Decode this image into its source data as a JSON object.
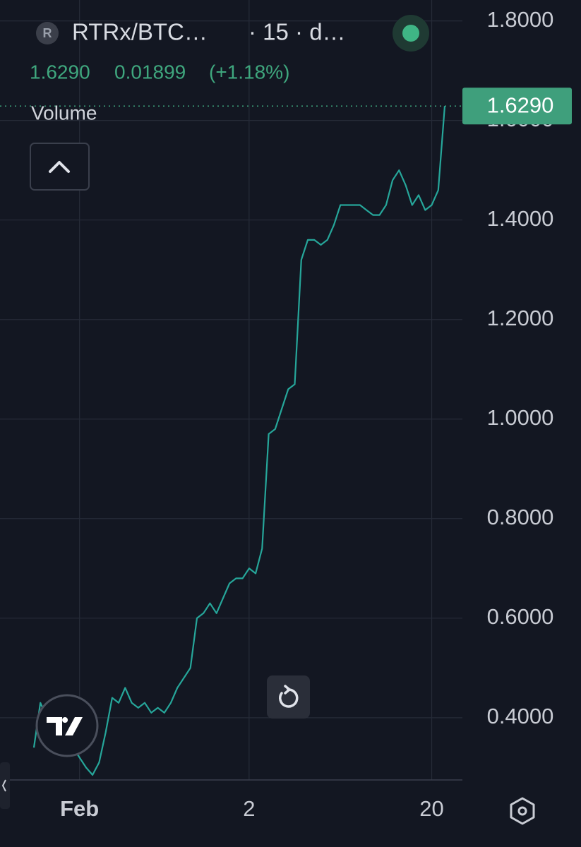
{
  "header": {
    "symbol_icon": "R",
    "symbol": "RTRx/BTC…",
    "interval": "· 15 · d…",
    "price": "1.6290",
    "change": "0.01899",
    "change_pct": "(+1.18%)"
  },
  "chart_data": {
    "type": "line",
    "volume_label": "Volume",
    "color": "#26a69a",
    "categories": [
      null,
      null,
      null,
      null,
      null,
      null,
      null,
      "Feb",
      null,
      null,
      null,
      null,
      null,
      null,
      null,
      null,
      null,
      null,
      null,
      null,
      null,
      null,
      null,
      null,
      null,
      null,
      null,
      null,
      null,
      null,
      null,
      null,
      null,
      "2",
      null,
      null,
      null,
      null,
      null,
      null,
      null,
      null,
      null,
      null,
      null,
      null,
      null,
      null,
      null,
      null,
      null,
      null,
      null,
      null,
      null,
      null,
      null,
      null,
      null,
      null,
      null,
      "20",
      null,
      null
    ],
    "values": [
      0.34,
      0.43,
      0.4,
      0.36,
      0.34,
      0.33,
      0.34,
      0.32,
      0.3,
      0.285,
      0.31,
      0.37,
      0.44,
      0.43,
      0.46,
      0.43,
      0.42,
      0.43,
      0.41,
      0.42,
      0.41,
      0.43,
      0.46,
      0.48,
      0.5,
      0.6,
      0.61,
      0.63,
      0.61,
      0.64,
      0.67,
      0.68,
      0.68,
      0.7,
      0.69,
      0.74,
      0.97,
      0.98,
      1.02,
      1.06,
      1.07,
      1.32,
      1.36,
      1.36,
      1.35,
      1.36,
      1.39,
      1.43,
      1.43,
      1.43,
      1.43,
      1.42,
      1.41,
      1.41,
      1.43,
      1.48,
      1.5,
      1.47,
      1.43,
      1.45,
      1.42,
      1.43,
      1.46,
      1.629
    ],
    "ylim": [
      0.275,
      1.842
    ],
    "yticks": [
      {
        "value": 0.4,
        "label": "0.4000"
      },
      {
        "value": 0.6,
        "label": "0.6000"
      },
      {
        "value": 0.8,
        "label": "0.8000"
      },
      {
        "value": 1.0,
        "label": "1.0000"
      },
      {
        "value": 1.2,
        "label": "1.2000"
      },
      {
        "value": 1.4,
        "label": "1.4000"
      },
      {
        "value": 1.6,
        "label": "1.6000"
      },
      {
        "value": 1.8,
        "label": "1.8000"
      }
    ],
    "last_price": {
      "value": 1.629,
      "label": "1.6290"
    },
    "grid": true
  }
}
